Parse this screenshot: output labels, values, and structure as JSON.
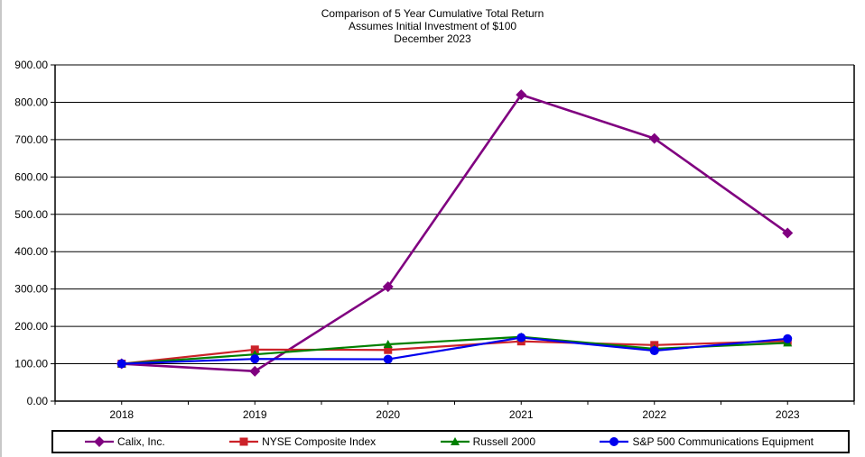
{
  "chart_data": {
    "type": "line",
    "title": "Comparison of 5 Year Cumulative Total Return",
    "subtitle1": "Assumes Initial Investment of $100",
    "subtitle2": "December 2023",
    "categories": [
      "2018",
      "2019",
      "2020",
      "2021",
      "2022",
      "2023"
    ],
    "series": [
      {
        "name": "Calix, Inc.",
        "color": "#800080",
        "marker": "diamond",
        "values": [
          100.0,
          80.0,
          306.0,
          820.0,
          703.0,
          450.0
        ]
      },
      {
        "name": "NYSE Composite Index",
        "color": "#CC2229",
        "marker": "square",
        "values": [
          100.0,
          138.0,
          137.0,
          160.0,
          150.0,
          161.0
        ]
      },
      {
        "name": "Russell 2000",
        "color": "#008000",
        "marker": "triangle",
        "values": [
          100.0,
          125.0,
          152.0,
          172.0,
          140.0,
          156.0
        ]
      },
      {
        "name": "S&P 500 Communications Equipment",
        "color": "#0000EE",
        "marker": "circle",
        "values": [
          100.0,
          113.0,
          112.0,
          170.0,
          135.0,
          167.0
        ]
      }
    ],
    "ylim": [
      0,
      900
    ],
    "ytick_step": 100,
    "ytick_decimals": 2,
    "grid": "horizontal-black",
    "legend_position": "bottom",
    "axis_color": "#000000"
  }
}
